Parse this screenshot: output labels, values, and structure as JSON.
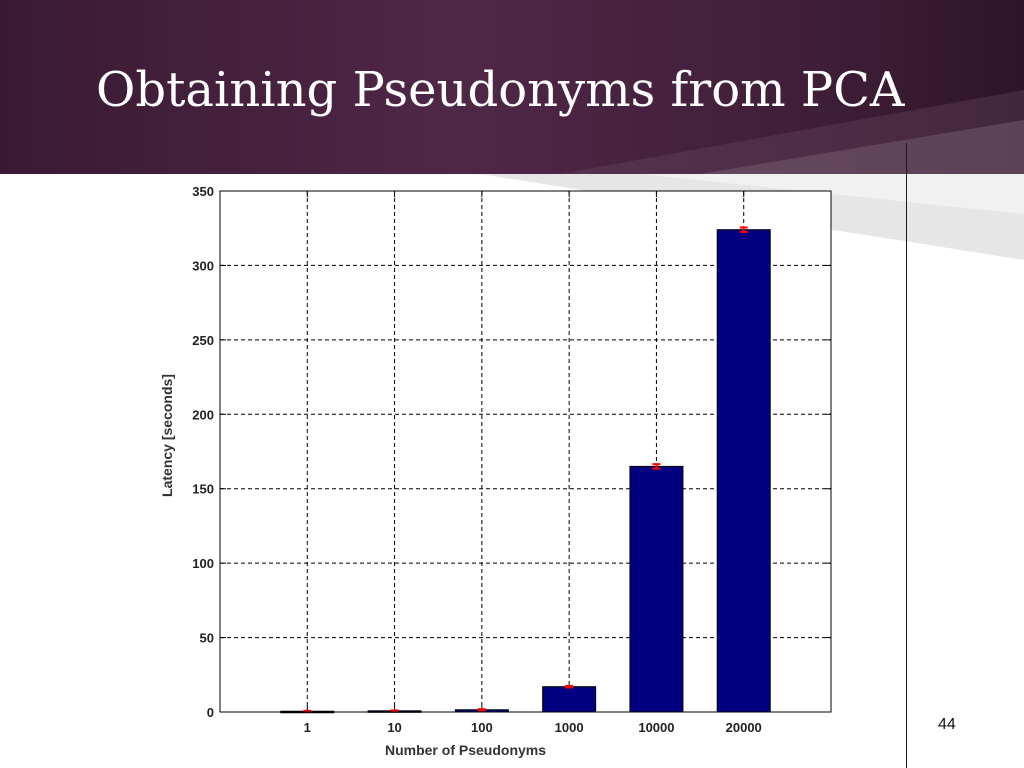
{
  "slide": {
    "title": "Obtaining Pseudonyms from PCA",
    "page_number": "44"
  },
  "colors": {
    "header_bg": "#4a2341",
    "bar_fill": "#000080",
    "error_marker": "#ff0000",
    "grid": "#000000"
  },
  "chart_data": {
    "type": "bar",
    "categories": [
      "1",
      "10",
      "100",
      "1000",
      "10000",
      "20000"
    ],
    "values": [
      0.5,
      0.8,
      1.5,
      17,
      165,
      324
    ],
    "error": [
      0.3,
      0.3,
      0.4,
      0.5,
      1.5,
      1.5
    ],
    "title": "",
    "xlabel": "Number of Pseudonyms",
    "ylabel": "Latency [seconds]",
    "ylim": [
      0,
      350
    ],
    "yticks": [
      "0",
      "50",
      "100",
      "150",
      "200",
      "250",
      "300",
      "350"
    ],
    "grid": true,
    "legend": "none"
  }
}
